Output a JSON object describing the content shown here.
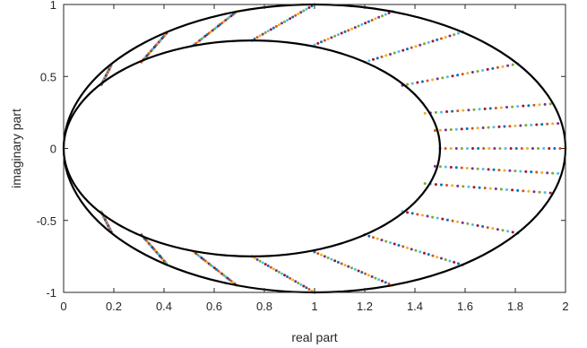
{
  "chart_data": {
    "type": "scatter",
    "title": "",
    "xlabel": "real part",
    "ylabel": "imaginary part",
    "xlim": [
      0,
      2
    ],
    "ylim": [
      -1,
      1
    ],
    "xticks": [
      0,
      0.2,
      0.4,
      0.6,
      0.8,
      1,
      1.2,
      1.4,
      1.6,
      1.8,
      2
    ],
    "xtick_labels": [
      "0",
      "0.2",
      "0.4",
      "0.6",
      "0.8",
      "1",
      "1.2",
      "1.4",
      "1.6",
      "1.8",
      "2"
    ],
    "yticks": [
      -1,
      -0.5,
      0,
      0.5,
      1
    ],
    "ytick_labels": [
      "-1",
      "-0.5",
      "0",
      "0.5",
      "1"
    ],
    "grid": false,
    "legend": "none",
    "curves": [
      {
        "kind": "ellipse",
        "center": [
          1,
          0
        ],
        "semi_axes": [
          1,
          1
        ],
        "color": "#000000"
      },
      {
        "kind": "ellipse",
        "center": [
          0.75,
          0
        ],
        "semi_axes": [
          0.75,
          0.75
        ],
        "color": "#000000"
      }
    ],
    "rays": [
      {
        "inner": [
          1.5,
          0
        ],
        "outer": [
          2.0,
          0
        ]
      },
      {
        "inner": [
          1.48,
          0.124
        ],
        "outer": [
          1.97,
          0.174
        ]
      },
      {
        "inner": [
          1.44,
          0.244
        ],
        "outer": [
          1.94,
          0.309
        ]
      },
      {
        "inner": [
          1.35,
          0.438
        ],
        "outer": [
          1.81,
          0.588
        ]
      },
      {
        "inner": [
          1.2,
          0.6
        ],
        "outer": [
          1.59,
          0.809
        ]
      },
      {
        "inner": [
          1.0,
          0.72
        ],
        "outer": [
          1.31,
          0.951
        ]
      },
      {
        "inner": [
          0.75,
          0.75
        ],
        "outer": [
          1.0,
          1.0
        ]
      },
      {
        "inner": [
          0.52,
          0.72
        ],
        "outer": [
          0.69,
          0.951
        ]
      },
      {
        "inner": [
          0.31,
          0.6
        ],
        "outer": [
          0.41,
          0.8
        ]
      },
      {
        "inner": [
          0.15,
          0.44
        ],
        "outer": [
          0.19,
          0.58
        ]
      },
      {
        "inner": [
          1.48,
          -0.124
        ],
        "outer": [
          1.97,
          -0.174
        ]
      },
      {
        "inner": [
          1.44,
          -0.244
        ],
        "outer": [
          1.94,
          -0.309
        ]
      },
      {
        "inner": [
          1.35,
          -0.438
        ],
        "outer": [
          1.81,
          -0.588
        ]
      },
      {
        "inner": [
          1.2,
          -0.6
        ],
        "outer": [
          1.59,
          -0.809
        ]
      },
      {
        "inner": [
          1.0,
          -0.72
        ],
        "outer": [
          1.31,
          -0.951
        ]
      },
      {
        "inner": [
          0.75,
          -0.75
        ],
        "outer": [
          1.0,
          -1.0
        ]
      },
      {
        "inner": [
          0.52,
          -0.72
        ],
        "outer": [
          0.69,
          -0.951
        ]
      },
      {
        "inner": [
          0.31,
          -0.6
        ],
        "outer": [
          0.41,
          -0.8
        ]
      },
      {
        "inner": [
          0.15,
          -0.44
        ],
        "outer": [
          0.19,
          -0.58
        ]
      }
    ],
    "points_per_ray": 24,
    "colors": [
      "#0072BD",
      "#D95319",
      "#EDB120",
      "#7E2F8E",
      "#77AC30",
      "#4DBEEE",
      "#A2142F"
    ]
  }
}
